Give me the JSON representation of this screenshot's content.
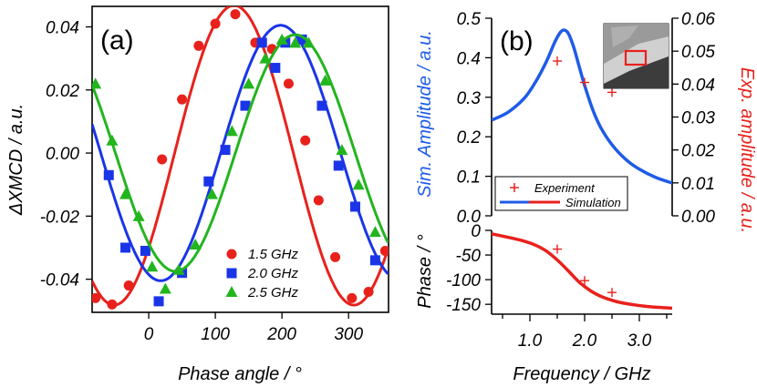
{
  "chart_data": [
    {
      "panel": "(a)",
      "type": "scatter",
      "xlabel": "Phase angle / °",
      "ylabel": "ΔXMCD / a.u.",
      "xlim": [
        -85,
        360
      ],
      "ylim": [
        -0.0505,
        0.0465
      ],
      "xticks": [
        0,
        100,
        200,
        300
      ],
      "xtick_labels": [
        "0",
        "100",
        "200",
        "300"
      ],
      "yticks": [
        0.04,
        0.02,
        0.0,
        -0.02,
        -0.04
      ],
      "ytick_labels": [
        "0.04",
        "0.02",
        "0.00",
        "-0.02",
        "-0.04"
      ],
      "series": [
        {
          "name": "1.5 GHz",
          "color": "#e8211c",
          "marker": "circle",
          "fit": {
            "amplitude": 0.0475,
            "center": 128,
            "offset": -0.0007
          },
          "x": [
            -80,
            -55,
            -30,
            -5,
            20,
            50,
            75,
            100,
            130,
            160,
            185,
            210,
            235,
            255,
            280,
            305,
            330,
            355
          ],
          "y": [
            -0.046,
            -0.048,
            -0.042,
            -0.031,
            -0.002,
            0.017,
            0.034,
            0.041,
            0.044,
            0.035,
            0.033,
            0.022,
            0.004,
            -0.015,
            -0.033,
            -0.046,
            -0.044,
            -0.031
          ]
        },
        {
          "name": "2.0 GHz",
          "color": "#1a35e8",
          "marker": "square",
          "fit": {
            "amplitude": 0.0405,
            "center": 198,
            "offset": 0.0
          },
          "x": [
            -60,
            -35,
            -5,
            15,
            50,
            90,
            115,
            145,
            170,
            190,
            205,
            230,
            260,
            285,
            310,
            340
          ],
          "y": [
            -0.007,
            -0.03,
            -0.031,
            -0.047,
            -0.038,
            -0.009,
            0.001,
            0.015,
            0.035,
            0.027,
            0.035,
            0.036,
            0.015,
            -0.004,
            -0.017,
            -0.034
          ]
        },
        {
          "name": "2.5 GHz",
          "color": "#22b51e",
          "marker": "triangle",
          "fit": {
            "amplitude": 0.0375,
            "center": 220,
            "offset": 0.0
          },
          "x": [
            -80,
            -55,
            -35,
            -15,
            5,
            25,
            45,
            70,
            95,
            125,
            150,
            175,
            200,
            220,
            240,
            265,
            290,
            315,
            340
          ],
          "y": [
            0.022,
            0.004,
            -0.013,
            -0.02,
            -0.036,
            -0.043,
            -0.037,
            -0.029,
            -0.013,
            0.007,
            0.022,
            0.03,
            0.036,
            0.035,
            0.035,
            0.023,
            0.001,
            -0.01,
            -0.025
          ]
        }
      ],
      "legend_position": "bottom-right"
    },
    {
      "panel": "(b)",
      "type": "line",
      "xlabel": "Frequency / GHz",
      "xlim": [
        0.3,
        3.6
      ],
      "xticks": [
        1.0,
        2.0,
        3.0
      ],
      "xtick_labels": [
        "1.0",
        "2.0",
        "3.0"
      ],
      "amplitude": {
        "ylabel_left": "Sim. Amplitude / a.u.",
        "ylabel_right": "Exp. amplitude / a.u.",
        "ylim_left": [
          0.0,
          0.5
        ],
        "ylim_right": [
          0.0,
          0.06
        ],
        "yticks_left": [
          "0.0",
          "0.1",
          "0.2",
          "0.3",
          "0.4",
          "0.5"
        ],
        "yticks_right": [
          "0.00",
          "0.01",
          "0.02",
          "0.03",
          "0.04",
          "0.05",
          "0.06"
        ],
        "simulation": {
          "name": "Simulation",
          "color": "#1f5be8",
          "x": [
            0.3,
            0.6,
            0.9,
            1.1,
            1.3,
            1.45,
            1.55,
            1.62,
            1.7,
            1.8,
            1.9,
            2.0,
            2.15,
            2.3,
            2.5,
            2.75,
            3.0,
            3.3,
            3.6
          ],
          "y": [
            0.242,
            0.262,
            0.298,
            0.338,
            0.39,
            0.438,
            0.463,
            0.47,
            0.462,
            0.427,
            0.378,
            0.33,
            0.268,
            0.222,
            0.18,
            0.143,
            0.118,
            0.097,
            0.083
          ]
        },
        "experiment": {
          "name": "Experiment",
          "color": "#e8211c",
          "x": [
            1.5,
            2.0,
            2.5
          ],
          "y": [
            0.047,
            0.0405,
            0.0375
          ]
        }
      },
      "phase": {
        "ylabel": "Phase / °",
        "ylim": [
          0,
          -170
        ],
        "yticks": [
          "0",
          "-50",
          "-100",
          "-150"
        ],
        "simulation": {
          "name": "Simulation",
          "color": "#e8211c",
          "x": [
            0.3,
            0.6,
            0.9,
            1.1,
            1.3,
            1.5,
            1.7,
            1.9,
            2.1,
            2.3,
            2.6,
            2.9,
            3.2,
            3.6
          ],
          "y": [
            -7,
            -14,
            -22,
            -30,
            -42,
            -60,
            -82,
            -105,
            -122,
            -134,
            -145,
            -151,
            -155,
            -158
          ]
        },
        "experiment": {
          "name": "Experiment",
          "color": "#e8211c",
          "x": [
            1.5,
            2.0,
            2.5
          ],
          "y": [
            -38,
            -102,
            -126
          ]
        }
      }
    }
  ],
  "legend_b": {
    "experiment": "Experiment",
    "simulation": "Simulation"
  }
}
